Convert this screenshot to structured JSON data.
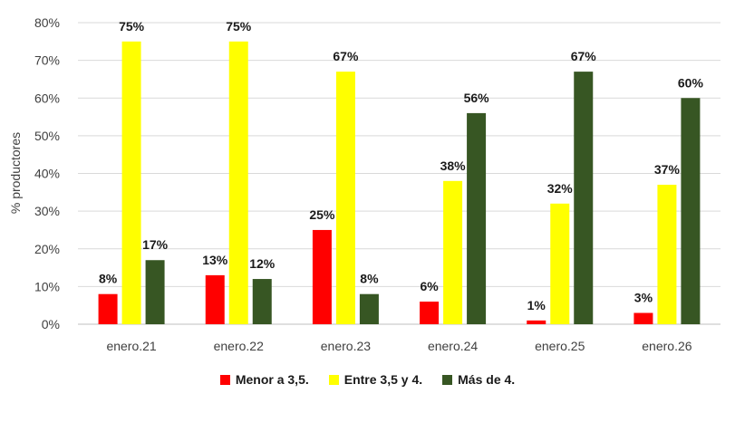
{
  "chart_data": {
    "type": "bar",
    "title": "",
    "xlabel": "",
    "ylabel": "% productores",
    "ylim": [
      0,
      80
    ],
    "yticks": [
      "0%",
      "10%",
      "20%",
      "30%",
      "40%",
      "50%",
      "60%",
      "70%",
      "80%"
    ],
    "grid": true,
    "legend_position": "bottom",
    "categories": [
      "enero.21",
      "enero.22",
      "enero.23",
      "enero.24",
      "enero.25",
      "enero.26"
    ],
    "series": [
      {
        "name": "Menor a 3,5.",
        "color": "#FF0000",
        "values": [
          8,
          13,
          25,
          6,
          1,
          3
        ],
        "labels": [
          "8%",
          "13%",
          "25%",
          "6%",
          "1%",
          "3%"
        ]
      },
      {
        "name": "Entre 3,5 y 4.",
        "color": "#FFFF00",
        "values": [
          75,
          75,
          67,
          38,
          32,
          37
        ],
        "labels": [
          "75%",
          "75%",
          "67%",
          "38%",
          "32%",
          "37%"
        ]
      },
      {
        "name": "Más de 4.",
        "color": "#375623",
        "values": [
          17,
          12,
          8,
          56,
          67,
          60
        ],
        "labels": [
          "17%",
          "12%",
          "8%",
          "56%",
          "67%",
          "60%"
        ]
      }
    ]
  }
}
